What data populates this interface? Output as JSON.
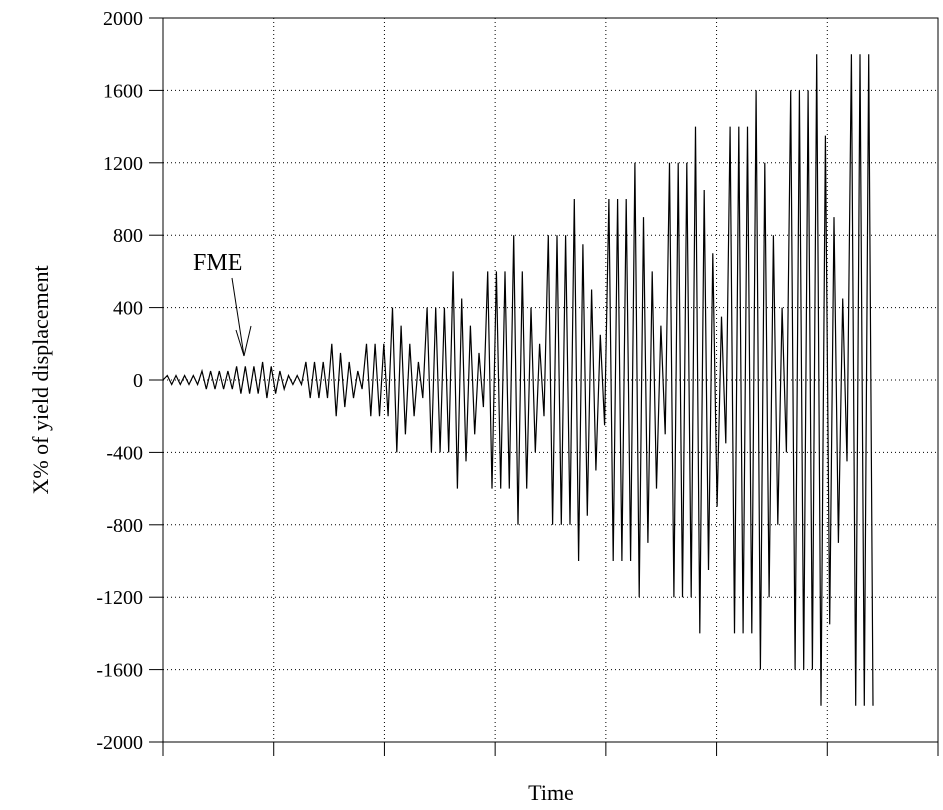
{
  "chart_data": {
    "type": "line",
    "title": "",
    "xlabel": "Time",
    "ylabel": "X% of yield displacement",
    "ylim": [
      -2000,
      2000
    ],
    "yticks": [
      2000,
      1600,
      1200,
      800,
      400,
      0,
      -400,
      -800,
      -1200,
      -1600,
      -2000
    ],
    "ytick_labels": [
      "2000",
      "1600",
      "1200",
      "800",
      "400",
      "0",
      "-400",
      "-800",
      "-1200",
      "-1600",
      "-2000"
    ],
    "grid": true,
    "annotations": [
      {
        "text": "FME"
      }
    ],
    "series": [
      {
        "color": "#000000",
        "values": [
          0,
          25,
          -25,
          25,
          -25,
          25,
          -25,
          25,
          -25,
          50,
          -50,
          50,
          -50,
          50,
          -50,
          50,
          -50,
          75,
          -75,
          75,
          -75,
          75,
          -75,
          100,
          -100,
          75,
          -75,
          50,
          -50,
          25,
          -25,
          25,
          -25,
          100,
          -100,
          100,
          -100,
          100,
          -100,
          200,
          -200,
          150,
          -150,
          100,
          -100,
          50,
          -50,
          200,
          -200,
          200,
          -200,
          200,
          -200,
          400,
          -400,
          300,
          -300,
          200,
          -200,
          100,
          -100,
          400,
          -400,
          400,
          -400,
          400,
          -400,
          600,
          -600,
          450,
          -450,
          300,
          -300,
          150,
          -150,
          600,
          -600,
          600,
          -600,
          600,
          -600,
          800,
          -800,
          600,
          -600,
          400,
          -400,
          200,
          -200,
          800,
          -800,
          800,
          -800,
          800,
          -800,
          1000,
          -1000,
          750,
          -750,
          500,
          -500,
          250,
          -250,
          1000,
          -1000,
          1000,
          -1000,
          1000,
          -1000,
          1200,
          -1200,
          900,
          -900,
          600,
          -600,
          300,
          -300,
          1200,
          -1200,
          1200,
          -1200,
          1200,
          -1200,
          1400,
          -1400,
          1050,
          -1050,
          700,
          -700,
          350,
          -350,
          1400,
          -1400,
          1400,
          -1400,
          1400,
          -1400,
          1600,
          -1600,
          1200,
          -1200,
          800,
          -800,
          400,
          -400,
          1600,
          -1600,
          1600,
          -1600,
          1600,
          -1600,
          1800,
          -1800,
          1350,
          -1350,
          900,
          -900,
          450,
          -450,
          1800,
          -1800,
          1800,
          -1800,
          1800,
          -1800
        ]
      }
    ]
  }
}
